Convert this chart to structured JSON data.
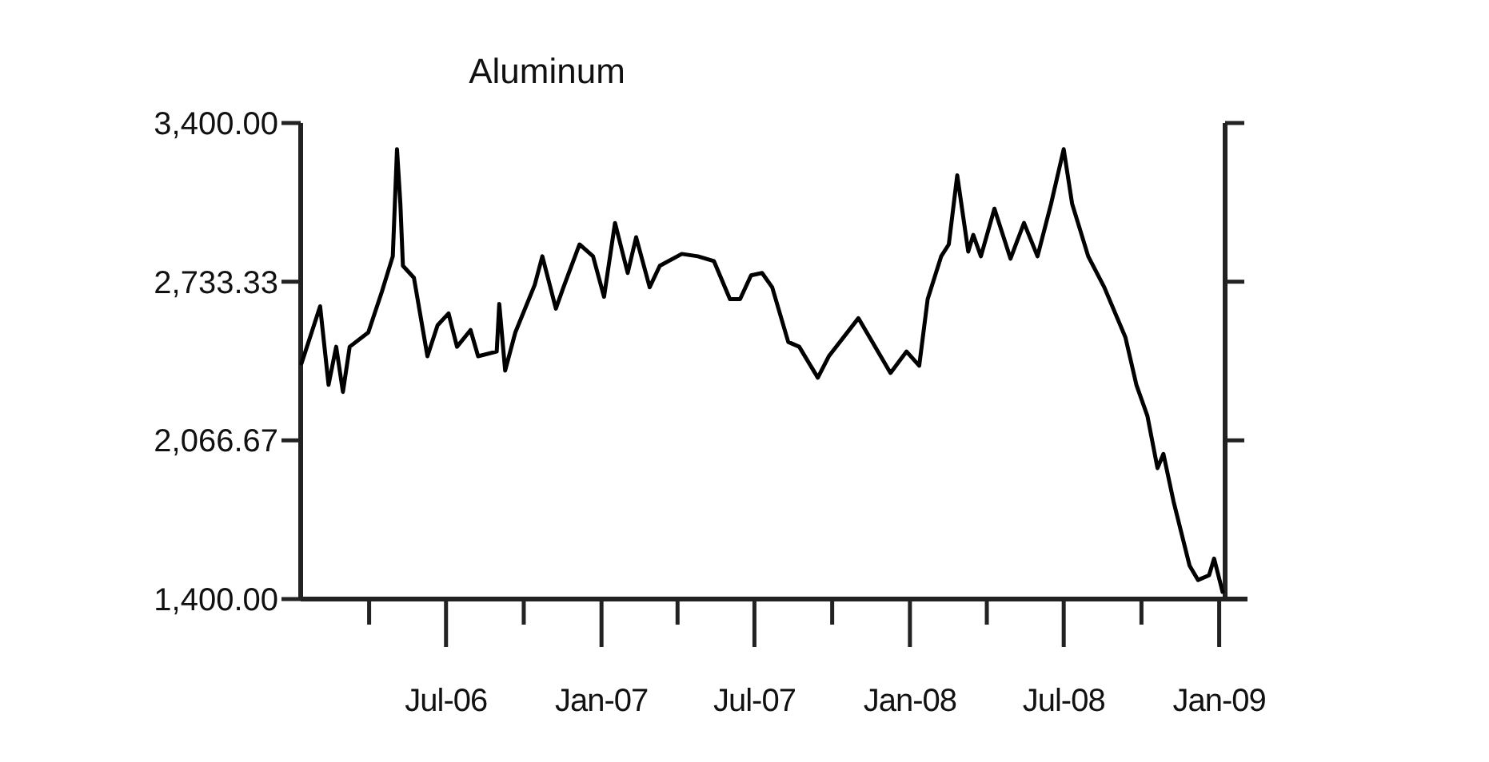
{
  "chart_data": {
    "type": "line",
    "title": "Aluminum",
    "x": [
      "2006-01-11",
      "2006-02-02",
      "2006-02-12",
      "2006-02-21",
      "2006-03-01",
      "2006-03-09",
      "2006-03-31",
      "2006-04-16",
      "2006-04-29",
      "2006-05-04",
      "2006-05-08",
      "2006-05-11",
      "2006-05-24",
      "2006-06-09",
      "2006-06-21",
      "2006-07-04",
      "2006-07-14",
      "2006-07-30",
      "2006-08-08",
      "2006-08-30",
      "2006-09-02",
      "2006-09-09",
      "2006-09-21",
      "2006-10-14",
      "2006-10-23",
      "2006-11-08",
      "2006-11-17",
      "2006-12-06",
      "2006-12-22",
      "2007-01-04",
      "2007-01-17",
      "2007-02-01",
      "2007-02-11",
      "2007-02-27",
      "2007-03-11",
      "2007-04-06",
      "2007-04-25",
      "2007-05-14",
      "2007-06-02",
      "2007-06-14",
      "2007-06-27",
      "2007-07-10",
      "2007-07-22",
      "2007-08-10",
      "2007-08-23",
      "2007-09-14",
      "2007-09-27",
      "2007-11-01",
      "2007-12-09",
      "2007-12-28",
      "2008-01-12",
      "2008-01-22",
      "2008-02-07",
      "2008-02-16",
      "2008-02-26",
      "2008-03-10",
      "2008-03-16",
      "2008-03-25",
      "2008-04-10",
      "2008-04-29",
      "2008-05-15",
      "2008-05-31",
      "2008-06-16",
      "2008-07-01",
      "2008-07-11",
      "2008-07-30",
      "2008-08-18",
      "2008-09-12",
      "2008-09-25",
      "2008-10-08",
      "2008-10-20",
      "2008-10-27",
      "2008-11-08",
      "2008-11-27",
      "2008-12-07",
      "2008-12-20",
      "2008-12-26",
      "2009-01-05"
    ],
    "series": [
      {
        "color": "#000000",
        "values": [
          2390,
          2630,
          2300,
          2460,
          2270,
          2460,
          2520,
          2690,
          2840,
          3290,
          3060,
          2800,
          2750,
          2420,
          2550,
          2600,
          2460,
          2530,
          2420,
          2440,
          2640,
          2360,
          2520,
          2720,
          2840,
          2620,
          2710,
          2890,
          2840,
          2670,
          2980,
          2770,
          2920,
          2710,
          2800,
          2850,
          2840,
          2820,
          2660,
          2660,
          2760,
          2770,
          2710,
          2480,
          2460,
          2330,
          2420,
          2580,
          2350,
          2440,
          2380,
          2660,
          2840,
          2890,
          3180,
          2860,
          2930,
          2840,
          3040,
          2830,
          2980,
          2840,
          3060,
          3290,
          3060,
          2840,
          2710,
          2500,
          2300,
          2170,
          1950,
          2010,
          1810,
          1540,
          1480,
          1500,
          1570,
          1430
        ]
      }
    ],
    "xlim": [
      "2006-01-10",
      "2009-01-08"
    ],
    "xticks": [
      {
        "value": "2006-04-01",
        "label": null
      },
      {
        "value": "2006-07-01",
        "label": "Jul-06"
      },
      {
        "value": "2006-10-01",
        "label": null
      },
      {
        "value": "2007-01-01",
        "label": "Jan-07"
      },
      {
        "value": "2007-04-01",
        "label": null
      },
      {
        "value": "2007-07-01",
        "label": "Jul-07"
      },
      {
        "value": "2007-10-01",
        "label": null
      },
      {
        "value": "2008-01-01",
        "label": "Jan-08"
      },
      {
        "value": "2008-04-01",
        "label": null
      },
      {
        "value": "2008-07-01",
        "label": "Jul-08"
      },
      {
        "value": "2008-10-01",
        "label": null
      },
      {
        "value": "2009-01-01",
        "label": "Jan-09"
      }
    ],
    "ylim": [
      1400,
      3400
    ],
    "yticks": [
      {
        "value": 1400,
        "label": "1,400.00"
      },
      {
        "value": 2066.67,
        "label": "2,066.67"
      },
      {
        "value": 2733.33,
        "label": "2,733.33"
      },
      {
        "value": 3400,
        "label": "3,400.00"
      }
    ],
    "grid": false,
    "marker": "none",
    "line_style": "solid"
  }
}
